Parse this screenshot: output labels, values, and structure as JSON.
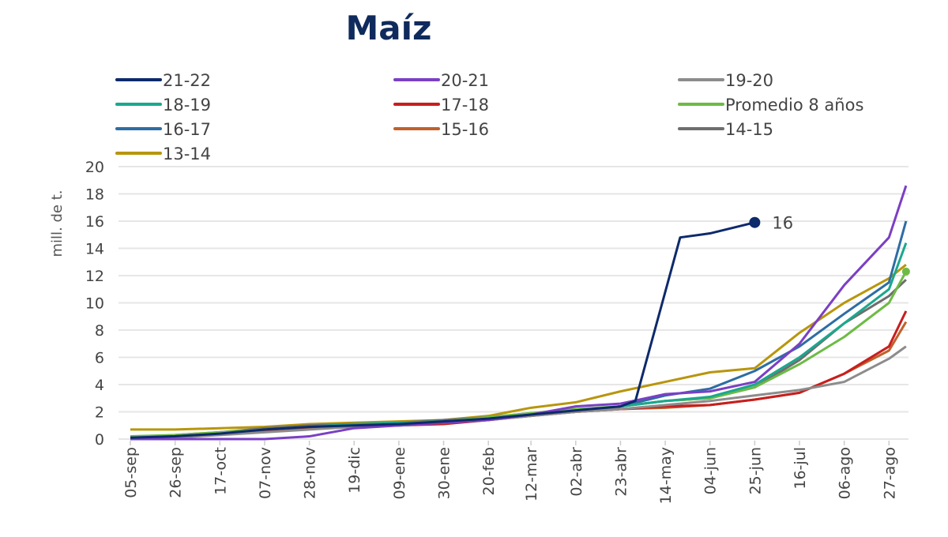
{
  "chart_data": {
    "type": "line",
    "title": "Maíz",
    "xlabel": "",
    "ylabel": "mill. de t.",
    "ylim": [
      0,
      20
    ],
    "yticks": [
      "0",
      "2",
      "4",
      "6",
      "8",
      "10",
      "12",
      "14",
      "16",
      "18",
      "20"
    ],
    "grid": true,
    "legend_position": "top",
    "x": [
      "05-sep",
      "26-sep",
      "17-oct",
      "07-nov",
      "28-nov",
      "19-dic",
      "09-ene",
      "30-ene",
      "20-feb",
      "12-mar",
      "02-abr",
      "23-abr",
      "14-may",
      "04-jun",
      "25-jun",
      "16-jul",
      "06-ago",
      "27-ago",
      "04-sep"
    ],
    "xtick_labels": [
      "05-sep",
      "26-sep",
      "17-oct",
      "07-nov",
      "28-nov",
      "19-dic",
      "09-ene",
      "30-ene",
      "20-feb",
      "12-mar",
      "02-abr",
      "23-abr",
      "14-may",
      "04-jun",
      "25-jun",
      "16-jul",
      "06-ago",
      "27-ago"
    ],
    "series": [
      {
        "name": "21-22",
        "color": "#0d2a6b",
        "x": [
          "05-sep",
          "26-sep",
          "17-oct",
          "07-nov",
          "28-nov",
          "19-dic",
          "09-ene",
          "30-ene",
          "20-feb",
          "12-mar",
          "02-abr",
          "23-abr",
          "30-abr",
          "21-may",
          "04-jun",
          "25-jun"
        ],
        "values": [
          0.1,
          0.2,
          0.4,
          0.7,
          0.9,
          1.0,
          1.1,
          1.3,
          1.5,
          1.8,
          2.1,
          2.4,
          2.8,
          14.8,
          15.1,
          15.9
        ],
        "end_label": "16"
      },
      {
        "name": "20-21",
        "color": "#7b3fc4",
        "values": [
          0,
          0,
          0,
          0,
          0.2,
          0.8,
          1.0,
          1.2,
          1.4,
          1.8,
          2.4,
          2.6,
          3.3,
          3.5,
          4.2,
          7.0,
          11.3,
          14.8,
          18.6
        ]
      },
      {
        "name": "19-20",
        "color": "#8c8c8c",
        "values": [
          0,
          0.1,
          0.3,
          0.5,
          0.7,
          0.9,
          1.0,
          1.2,
          1.4,
          1.7,
          2.0,
          2.2,
          2.5,
          2.8,
          3.2,
          3.6,
          4.2,
          5.9,
          6.8
        ]
      },
      {
        "name": "18-19",
        "color": "#1aa88e",
        "values": [
          0.1,
          0.2,
          0.4,
          0.7,
          0.9,
          1.1,
          1.2,
          1.3,
          1.5,
          1.8,
          2.1,
          2.4,
          2.8,
          3.1,
          4.0,
          6.0,
          8.5,
          11.0,
          14.4
        ]
      },
      {
        "name": "17-18",
        "color": "#c81e1e",
        "values": [
          0,
          0.2,
          0.4,
          0.6,
          0.8,
          0.9,
          1.0,
          1.1,
          1.4,
          1.7,
          2.0,
          2.2,
          2.4,
          2.5,
          2.9,
          3.4,
          4.8,
          6.8,
          9.4
        ]
      },
      {
        "name": "Promedio 8 años",
        "color": "#6dbb45",
        "values": [
          0.2,
          0.3,
          0.5,
          0.7,
          0.9,
          1.0,
          1.1,
          1.3,
          1.6,
          1.9,
          2.2,
          2.4,
          2.8,
          3.0,
          3.8,
          5.5,
          7.5,
          10.0,
          12.3
        ]
      },
      {
        "name": "16-17",
        "color": "#2e6da4",
        "values": [
          0.1,
          0.2,
          0.4,
          0.6,
          0.8,
          1.0,
          1.1,
          1.3,
          1.5,
          1.8,
          2.1,
          2.4,
          3.2,
          3.7,
          5.0,
          6.8,
          9.2,
          11.5,
          16.0
        ]
      },
      {
        "name": "15-16",
        "color": "#c0612b",
        "values": [
          0.1,
          0.3,
          0.5,
          0.7,
          0.9,
          1.0,
          1.1,
          1.2,
          1.5,
          1.8,
          2.0,
          2.2,
          2.3,
          2.5,
          2.9,
          3.4,
          4.8,
          6.5,
          8.6
        ]
      },
      {
        "name": "14-15",
        "color": "#6e6e6e",
        "values": [
          0.1,
          0.2,
          0.5,
          0.8,
          1.0,
          1.1,
          1.2,
          1.4,
          1.6,
          1.9,
          2.1,
          2.4,
          2.8,
          3.0,
          3.8,
          5.8,
          8.5,
          10.5,
          11.7
        ]
      },
      {
        "name": "13-14",
        "color": "#b8960c",
        "values": [
          0.7,
          0.7,
          0.8,
          0.9,
          1.1,
          1.2,
          1.3,
          1.4,
          1.7,
          2.3,
          2.7,
          3.5,
          4.2,
          4.9,
          5.2,
          7.8,
          10.0,
          11.8,
          12.8
        ]
      }
    ]
  }
}
